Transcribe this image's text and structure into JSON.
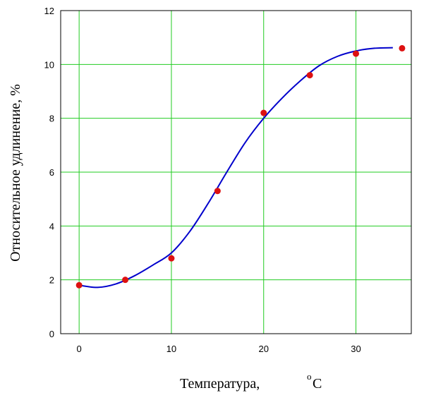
{
  "chart_data": {
    "type": "scatter",
    "xlabel": "Температура,",
    "xlabel_unit_sup": "o",
    "xlabel_unit": "C",
    "ylabel": "Относительное удлинение, %",
    "xlim": [
      -2,
      36
    ],
    "ylim": [
      0,
      12
    ],
    "x_ticks": [
      0,
      10,
      20,
      30
    ],
    "y_ticks": [
      0,
      2,
      4,
      6,
      8,
      10,
      12
    ],
    "grid": true,
    "colors": {
      "grid": "#22cc22",
      "curve": "#0000cc",
      "points": "#dd1111",
      "frame": "#000000"
    },
    "series": [
      {
        "kind": "points",
        "x": [
          0,
          5,
          10,
          15,
          20,
          25,
          30,
          35
        ],
        "y": [
          1.8,
          2.0,
          2.8,
          5.3,
          8.2,
          9.6,
          10.4,
          10.6
        ]
      },
      {
        "kind": "fitted-curve",
        "x": [
          0,
          2,
          4,
          6,
          8,
          10,
          12,
          14,
          16,
          18,
          20,
          22,
          24,
          26,
          28,
          30,
          32,
          34
        ],
        "y": [
          1.8,
          1.72,
          1.85,
          2.15,
          2.55,
          3.0,
          3.8,
          4.85,
          6.0,
          7.1,
          8.0,
          8.75,
          9.4,
          9.95,
          10.3,
          10.5,
          10.6,
          10.62
        ]
      }
    ]
  }
}
